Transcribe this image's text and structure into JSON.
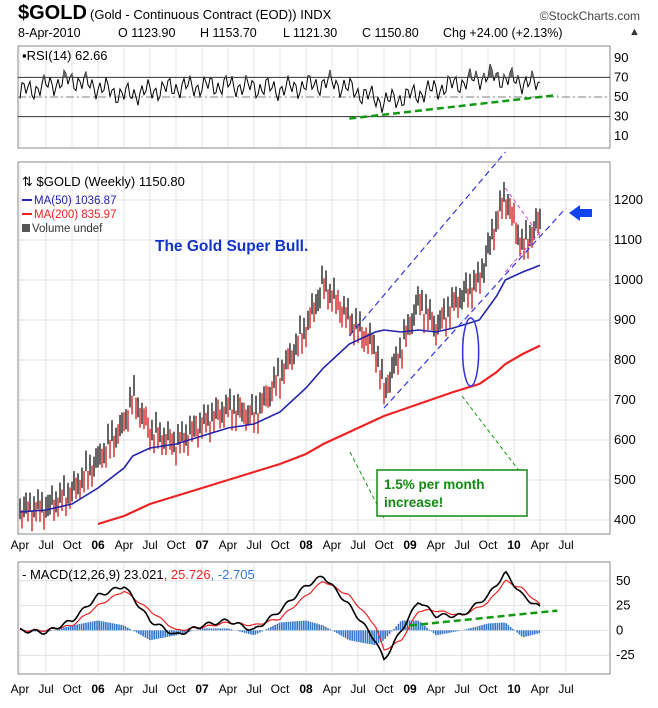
{
  "header": {
    "symbol": "$GOLD",
    "description": "(Gold - Continuous Contract (EOD)) INDX",
    "brand": "©StockCharts.com",
    "date": "8-Apr-2010",
    "open": "O 1123.90",
    "high": "H 1153.70",
    "low": "L 1121.30",
    "close": "C 1150.80",
    "change": "Chg +24.00 (+2.13%)",
    "change_arrow": "▲"
  },
  "colors": {
    "price": "#000000",
    "up_bar": "#000000",
    "down_bar": "#cc0000",
    "ma50": "#2222aa",
    "ma200": "#ee2222",
    "channel": "#3333dd",
    "green_trend": "#119911",
    "wedge": "#cc44cc",
    "annotation_title": "#1133cc",
    "annotation_box": "#118811",
    "macd_line": "#000000",
    "signal_line": "#ee2222",
    "histogram": "#3377cc",
    "grid": "#cccccc"
  },
  "chart_data": [
    {
      "type": "area",
      "panel": "RSI",
      "legend": {
        "label": "RSI(14)",
        "value": "62.66"
      },
      "y_ticks": [
        10,
        30,
        50,
        70,
        90
      ],
      "ylim": [
        0,
        100
      ],
      "reference_lines": [
        30,
        70
      ],
      "x": [
        "2005-04",
        "2005-10",
        "2006-04",
        "2006-10",
        "2007-04",
        "2007-10",
        "2008-04",
        "2008-10",
        "2009-04",
        "2009-10",
        "2010-04"
      ],
      "values": [
        55,
        68,
        52,
        60,
        62,
        58,
        65,
        45,
        58,
        72,
        62.66
      ],
      "trendline": {
        "from": [
          "2008-06",
          28
        ],
        "to": [
          "2010-06",
          52
        ]
      }
    },
    {
      "type": "line",
      "panel": "Price",
      "legend": [
        {
          "label": "$GOLD (Weekly)",
          "value": "1150.80"
        },
        {
          "label": "MA(50)",
          "value": "1036.87"
        },
        {
          "label": "MA(200)",
          "value": "835.97"
        },
        {
          "label": "Volume",
          "value": "undef"
        }
      ],
      "y_ticks": [
        400,
        500,
        600,
        700,
        800,
        900,
        1000,
        1100,
        1200
      ],
      "ylim": [
        380,
        1280
      ],
      "x_ticks": [
        "Apr",
        "Jul",
        "Oct",
        "06",
        "Apr",
        "Jul",
        "Oct",
        "07",
        "Apr",
        "Jul",
        "Oct",
        "08",
        "Apr",
        "Jul",
        "Oct",
        "09",
        "Apr",
        "Jul",
        "Oct",
        "10",
        "Apr",
        "Jul"
      ],
      "x": [
        "2005-04",
        "2005-07",
        "2005-10",
        "2006-01",
        "2006-04",
        "2006-05",
        "2006-07",
        "2006-10",
        "2007-01",
        "2007-04",
        "2007-07",
        "2007-10",
        "2008-01",
        "2008-03",
        "2008-06",
        "2008-09",
        "2008-10",
        "2008-12",
        "2009-02",
        "2009-04",
        "2009-06",
        "2009-09",
        "2009-11",
        "2009-12",
        "2010-02",
        "2010-04"
      ],
      "series": [
        {
          "name": "$GOLD (Weekly)",
          "values": [
            425,
            430,
            470,
            550,
            640,
            710,
            620,
            590,
            640,
            680,
            660,
            760,
            880,
            990,
            900,
            830,
            720,
            830,
            950,
            880,
            940,
            1000,
            1150,
            1210,
            1080,
            1150.8
          ]
        },
        {
          "name": "MA(50)",
          "values": [
            420,
            425,
            440,
            480,
            530,
            560,
            580,
            590,
            610,
            630,
            640,
            670,
            730,
            780,
            840,
            870,
            875,
            870,
            875,
            870,
            880,
            900,
            960,
            1000,
            1020,
            1036.87
          ]
        },
        {
          "name": "MA(200)",
          "values": [
            null,
            null,
            null,
            390,
            410,
            420,
            440,
            460,
            480,
            500,
            520,
            540,
            565,
            590,
            620,
            650,
            660,
            675,
            690,
            705,
            720,
            740,
            770,
            790,
            815,
            835.97
          ]
        }
      ],
      "annotations": [
        {
          "text": "The Gold Super Bull."
        },
        {
          "text": "1.5% per month increase!"
        }
      ]
    },
    {
      "type": "line",
      "panel": "MACD",
      "legend": {
        "label": "MACD(12,26,9)",
        "macd": "23.021",
        "signal": "25.726",
        "histogram": "-2.705"
      },
      "y_ticks": [
        -25,
        0,
        25,
        50
      ],
      "ylim": [
        -40,
        65
      ],
      "x": [
        "2005-04",
        "2005-07",
        "2005-10",
        "2006-01",
        "2006-04",
        "2006-07",
        "2006-10",
        "2007-01",
        "2007-04",
        "2007-07",
        "2007-10",
        "2008-01",
        "2008-03",
        "2008-06",
        "2008-09",
        "2008-10",
        "2008-12",
        "2009-02",
        "2009-04",
        "2009-07",
        "2009-10",
        "2009-12",
        "2010-02",
        "2010-04"
      ],
      "series": [
        {
          "name": "MACD",
          "values": [
            0,
            -2,
            10,
            35,
            45,
            10,
            -5,
            5,
            10,
            0,
            20,
            45,
            55,
            25,
            -10,
            -30,
            0,
            30,
            15,
            15,
            35,
            58,
            35,
            23.021
          ]
        },
        {
          "name": "Signal",
          "values": [
            0,
            0,
            5,
            25,
            40,
            20,
            0,
            3,
            8,
            5,
            12,
            35,
            50,
            35,
            5,
            -20,
            -10,
            20,
            20,
            15,
            28,
            50,
            42,
            25.726
          ]
        },
        {
          "name": "Histogram",
          "values": [
            0,
            -2,
            5,
            10,
            5,
            -10,
            -5,
            2,
            2,
            -5,
            8,
            10,
            5,
            -10,
            -15,
            -10,
            10,
            10,
            -5,
            0,
            7,
            8,
            -7,
            -2.705
          ]
        }
      ],
      "trendline": {
        "from": [
          "2009-01",
          5
        ],
        "to": [
          "2010-06",
          20
        ]
      }
    }
  ]
}
